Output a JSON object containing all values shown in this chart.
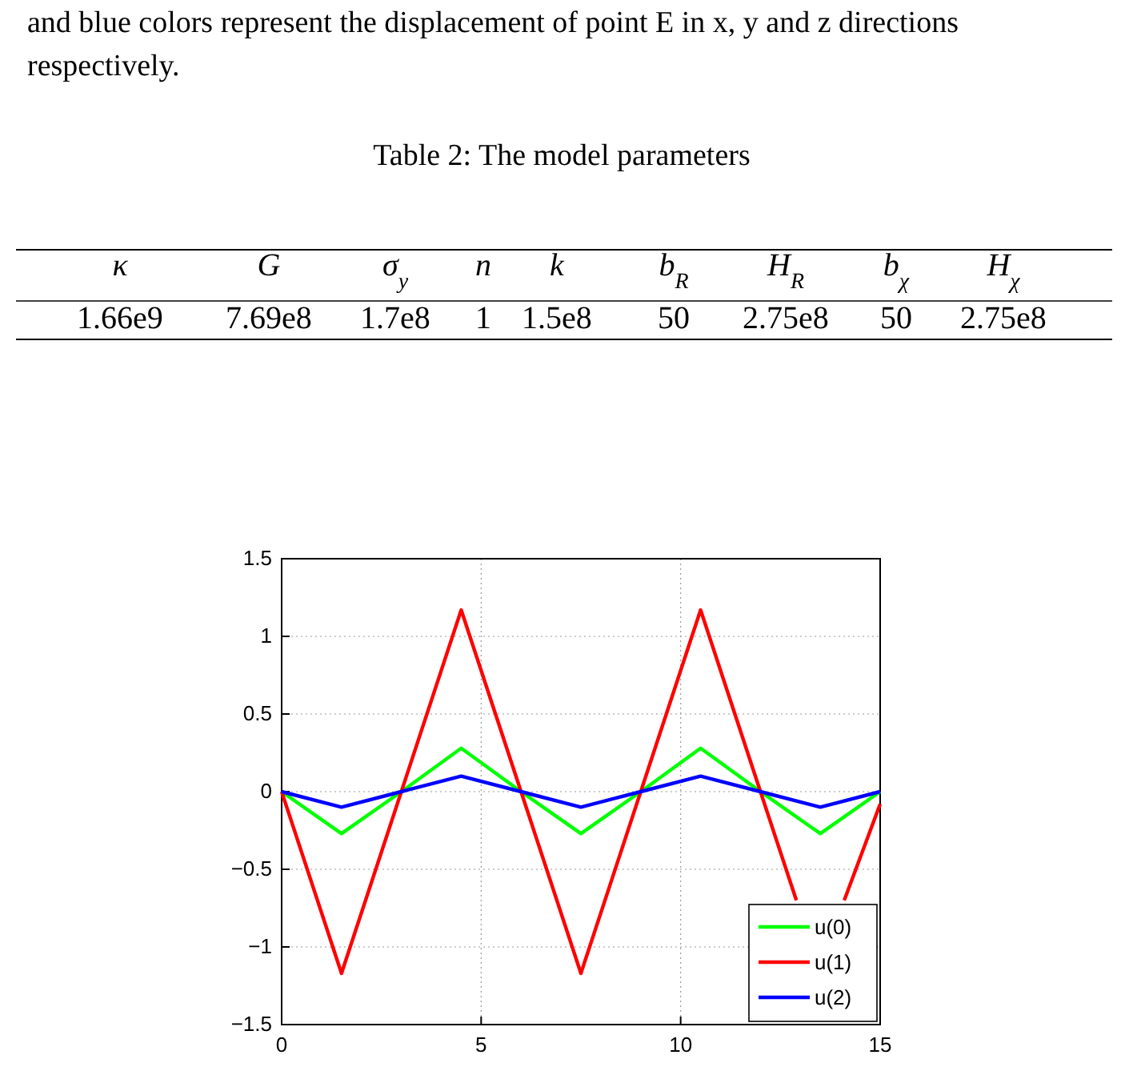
{
  "chart_data": [
    {
      "type": "other",
      "title": "Table 2: The model parameters",
      "annotations": [
        "and blue colors represent the displacement of point E in x, y and z directions",
        "respectively."
      ],
      "categories": [
        "κ",
        "G",
        "σ$_{y}$",
        "n",
        "k",
        "b$_{R}$",
        "H$_{R}$",
        "b$_{χ}$",
        "H$_{χ}$"
      ],
      "value_labels": [
        "1.66e9",
        "7.69e8",
        "1.7e8",
        "1",
        "1.5e8",
        "50",
        "2.75e8",
        "50",
        "2.75e8"
      ]
    },
    {
      "type": "line",
      "x": [
        0,
        1.5,
        3,
        4.5,
        6,
        7.5,
        9,
        10.5,
        12,
        13.5,
        15
      ],
      "series": [
        {
          "name": "u(0)",
          "color": "#00ff00",
          "values": [
            0,
            -0.27,
            0,
            0.28,
            0,
            -0.27,
            0,
            0.28,
            0,
            -0.27,
            0
          ]
        },
        {
          "name": "u(1)",
          "color": "#ff0000",
          "x": [
            0,
            1.5,
            3,
            4.5,
            6,
            7.5,
            9,
            10.5,
            12,
            12.9,
            13.5,
            14.1,
            15
          ],
          "values": [
            0,
            -1.17,
            0,
            1.17,
            0,
            -1.17,
            0,
            1.17,
            0,
            -0.7,
            null,
            -0.7,
            -0.08
          ]
        },
        {
          "name": "u(2)",
          "color": "#0000ff",
          "values": [
            0,
            -0.1,
            0,
            0.1,
            0,
            -0.1,
            0,
            0.1,
            0,
            -0.1,
            0
          ]
        }
      ],
      "xlim": [
        0,
        15
      ],
      "xticks": [
        0,
        5,
        10,
        15
      ],
      "ylim": [
        -1.5,
        1.5
      ],
      "yticks": [
        {
          "value": -1.5,
          "label": "−1.5"
        },
        {
          "value": -1,
          "label": "−1"
        },
        {
          "value": -0.5,
          "label": "−0.5"
        },
        0,
        0.5,
        1,
        1.5
      ],
      "grid": true,
      "legend": "bottom right",
      "line_style": "solid",
      "marker": "none"
    }
  ]
}
